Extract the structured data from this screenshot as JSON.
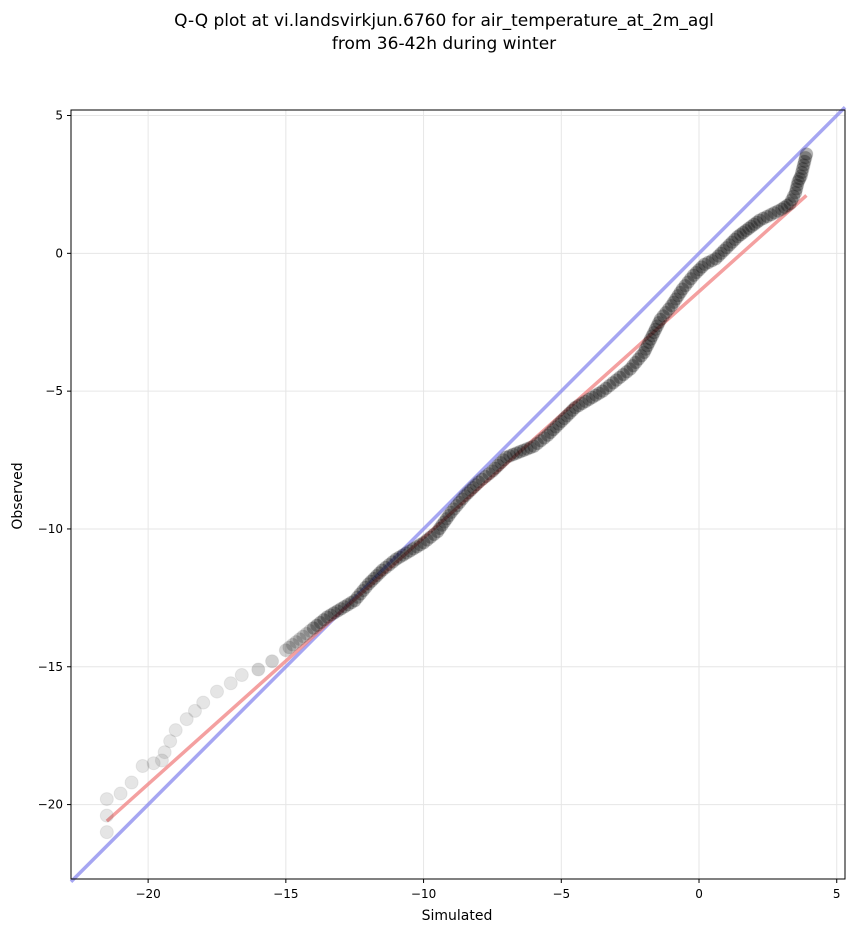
{
  "chart_data": {
    "type": "scatter",
    "title_line1": "Q-Q plot at vi.landsvirkjun.6760 for air_temperature_at_2m_agl",
    "title_line2": "from 36-42h during winter",
    "xlabel": "Simulated",
    "ylabel": "Observed",
    "xlim": [
      -22.8,
      5.3
    ],
    "ylim": [
      -22.7,
      5.2
    ],
    "xticks": [
      -20,
      -15,
      -10,
      -5,
      0,
      5
    ],
    "yticks": [
      -20,
      -15,
      -10,
      -5,
      0,
      5
    ],
    "xtick_labels": [
      "−20",
      "−15",
      "−10",
      "−5",
      "0",
      "5"
    ],
    "ytick_labels": [
      "−20",
      "−15",
      "−10",
      "−5",
      "0",
      "5"
    ],
    "grid": true,
    "marker_color": "#000000",
    "quantiles_key_points": [
      [
        -21.5,
        -21.0
      ],
      [
        -21.5,
        -19.8
      ],
      [
        -21.0,
        -19.6
      ],
      [
        -20.6,
        -19.2
      ],
      [
        -20.2,
        -18.6
      ],
      [
        -19.8,
        -18.5
      ],
      [
        -19.5,
        -18.4
      ],
      [
        -19.4,
        -18.1
      ],
      [
        -19.2,
        -17.7
      ],
      [
        -19.0,
        -17.3
      ],
      [
        -18.6,
        -16.9
      ],
      [
        -18.3,
        -16.6
      ],
      [
        -18.0,
        -16.3
      ],
      [
        -17.5,
        -15.9
      ],
      [
        -17.0,
        -15.6
      ],
      [
        -16.6,
        -15.3
      ],
      [
        -16.0,
        -15.1
      ],
      [
        -15.5,
        -14.8
      ],
      [
        -15.0,
        -14.4
      ],
      [
        -14.5,
        -14.0
      ],
      [
        -14.0,
        -13.6
      ],
      [
        -13.5,
        -13.2
      ],
      [
        -13.0,
        -12.9
      ],
      [
        -12.5,
        -12.6
      ],
      [
        -12.0,
        -12.0
      ],
      [
        -11.5,
        -11.5
      ],
      [
        -11.0,
        -11.1
      ],
      [
        -10.5,
        -10.8
      ],
      [
        -10.0,
        -10.5
      ],
      [
        -9.5,
        -10.1
      ],
      [
        -9.0,
        -9.4
      ],
      [
        -8.5,
        -8.8
      ],
      [
        -8.0,
        -8.3
      ],
      [
        -7.5,
        -7.9
      ],
      [
        -7.0,
        -7.4
      ],
      [
        -6.5,
        -7.2
      ],
      [
        -6.0,
        -7.0
      ],
      [
        -5.5,
        -6.6
      ],
      [
        -5.0,
        -6.1
      ],
      [
        -4.5,
        -5.6
      ],
      [
        -4.0,
        -5.3
      ],
      [
        -3.5,
        -5.0
      ],
      [
        -3.0,
        -4.6
      ],
      [
        -2.5,
        -4.2
      ],
      [
        -2.0,
        -3.6
      ],
      [
        -1.7,
        -3.0
      ],
      [
        -1.4,
        -2.4
      ],
      [
        -1.0,
        -1.9
      ],
      [
        -0.6,
        -1.3
      ],
      [
        -0.2,
        -0.8
      ],
      [
        0.2,
        -0.4
      ],
      [
        0.6,
        -0.2
      ],
      [
        1.0,
        0.2
      ],
      [
        1.4,
        0.6
      ],
      [
        1.8,
        0.9
      ],
      [
        2.2,
        1.2
      ],
      [
        2.6,
        1.4
      ],
      [
        3.0,
        1.6
      ],
      [
        3.3,
        1.8
      ],
      [
        3.5,
        2.2
      ],
      [
        3.6,
        2.6
      ],
      [
        3.7,
        2.8
      ],
      [
        3.9,
        3.6
      ]
    ],
    "identity_line": {
      "label": "y = x",
      "color": "#8888ee",
      "from": [
        -22.8,
        -22.8
      ],
      "to": [
        5.3,
        5.3
      ]
    },
    "fit_line": {
      "color": "#f08080",
      "from": [
        -21.5,
        -20.6
      ],
      "to": [
        3.9,
        2.1
      ]
    }
  }
}
